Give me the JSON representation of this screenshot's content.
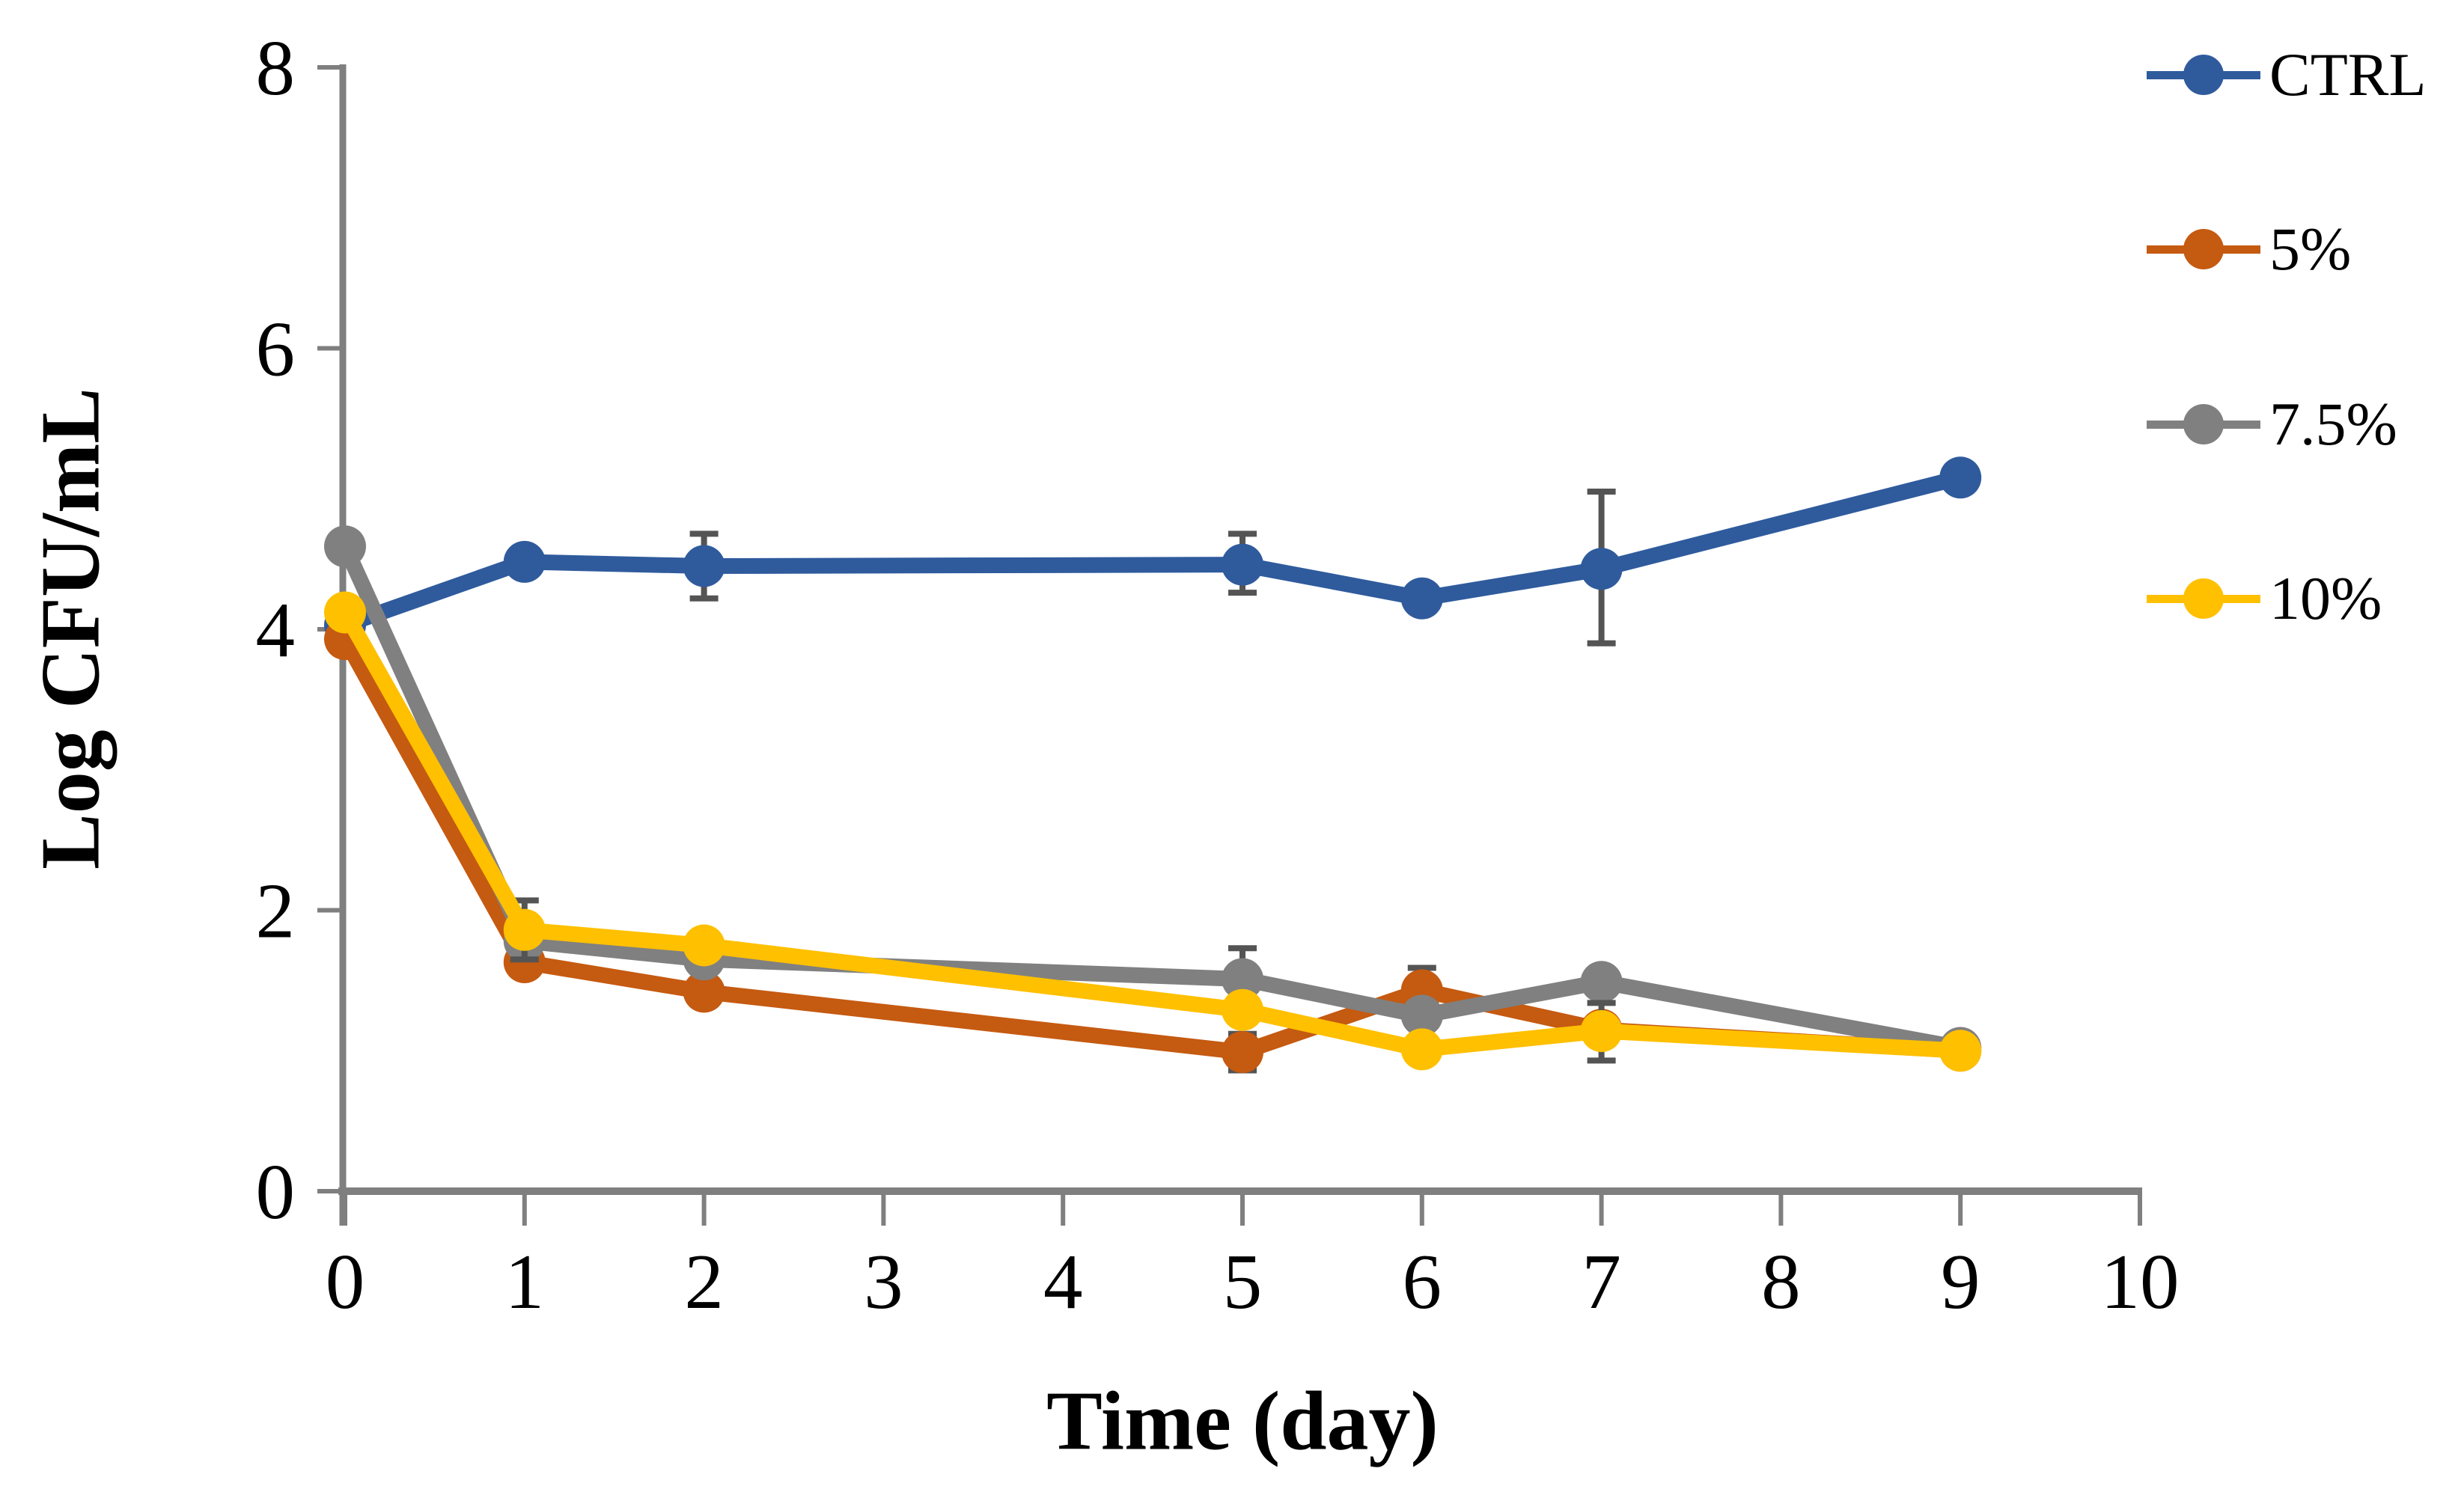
{
  "chart_data": {
    "type": "line",
    "title": "",
    "xlabel": "Time (day)",
    "ylabel": "Log CFU/mL",
    "xlim": [
      0,
      10
    ],
    "ylim": [
      0,
      8
    ],
    "x_ticks": [
      0,
      1,
      2,
      3,
      4,
      5,
      6,
      7,
      8,
      9,
      10
    ],
    "y_ticks": [
      0,
      2,
      4,
      6,
      8
    ],
    "grid": false,
    "legend_position": "right-outside",
    "axis_color": "#7F7F7F",
    "tick_label_color": "#000000",
    "error_bar_color": "#545454",
    "series": [
      {
        "name": "CTRL",
        "color": "#2F5B9D",
        "x": [
          0,
          1,
          2,
          5,
          6,
          7,
          9
        ],
        "y": [
          4.03,
          4.48,
          4.45,
          4.46,
          4.22,
          4.43,
          5.08
        ],
        "error_bars": [
          {
            "x": 2,
            "y": 4.45,
            "plus": 0.23,
            "minus": 0.23
          },
          {
            "x": 5,
            "y": 4.46,
            "plus": 0.22,
            "minus": 0.2
          },
          {
            "x": 7,
            "y": 4.43,
            "plus": 0.55,
            "minus": 0.53
          }
        ]
      },
      {
        "name": "5%",
        "color": "#C55A11",
        "x": [
          0,
          1,
          2,
          5,
          6,
          7,
          9
        ],
        "y": [
          3.93,
          1.63,
          1.42,
          0.99,
          1.43,
          1.15,
          1.0
        ],
        "error_bars": [
          {
            "x": 5,
            "y": 0.99,
            "plus": 0.13,
            "minus": 0.13
          },
          {
            "x": 6,
            "y": 1.43,
            "plus": 0.16,
            "minus": 0.16
          }
        ]
      },
      {
        "name": "7.5%",
        "color": "#808080",
        "x": [
          0,
          1,
          2,
          5,
          6,
          7,
          9
        ],
        "y": [
          4.59,
          1.78,
          1.65,
          1.51,
          1.25,
          1.49,
          1.02
        ],
        "error_bars": [
          {
            "x": 5,
            "y": 1.51,
            "plus": 0.22,
            "minus": 0.22
          }
        ]
      },
      {
        "name": "10%",
        "color": "#FFC000",
        "x": [
          0,
          1,
          2,
          5,
          6,
          7,
          9
        ],
        "y": [
          4.12,
          1.86,
          1.75,
          1.29,
          1.01,
          1.14,
          1.0
        ],
        "error_bars": [
          {
            "x": 1,
            "y": 1.86,
            "plus": 0.21,
            "minus": 0.21
          },
          {
            "x": 7,
            "y": 1.14,
            "plus": 0.2,
            "minus": 0.21
          }
        ]
      }
    ]
  }
}
